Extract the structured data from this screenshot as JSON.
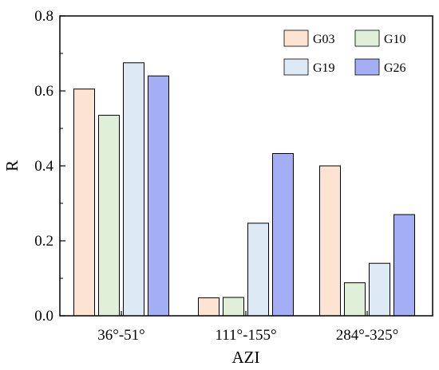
{
  "chart_data": {
    "type": "bar",
    "title": "",
    "xlabel": "AZI",
    "ylabel": "R",
    "categories": [
      "36°-51°",
      "111°-155°",
      "284°-325°"
    ],
    "ylim": [
      0,
      0.8
    ],
    "yticks": [
      "0.0",
      "0.2",
      "0.4",
      "0.6",
      "0.8"
    ],
    "grid": false,
    "legend_position": "top-right",
    "series": [
      {
        "name": "G03",
        "color": "#fce3d2",
        "values": [
          0.605,
          0.048,
          0.4
        ]
      },
      {
        "name": "G10",
        "color": "#e0f0d8",
        "values": [
          0.535,
          0.049,
          0.088
        ]
      },
      {
        "name": "G19",
        "color": "#dee9f6",
        "values": [
          0.675,
          0.247,
          0.14
        ]
      },
      {
        "name": "G26",
        "color": "#a4aef4",
        "values": [
          0.64,
          0.433,
          0.27
        ]
      }
    ]
  }
}
